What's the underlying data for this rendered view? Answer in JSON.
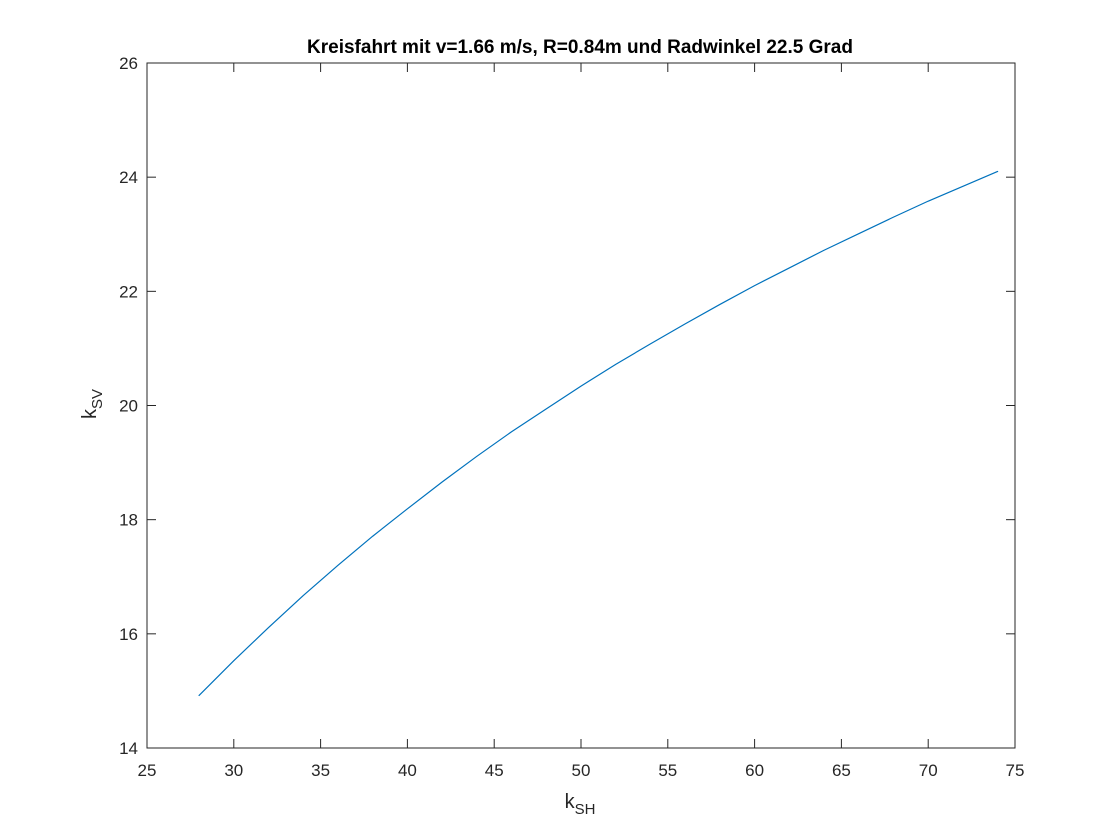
{
  "chart_data": {
    "type": "line",
    "title": "Kreisfahrt mit v=1.66 m/s, R=0.84m und Radwinkel 22.5 Grad",
    "xlabel": {
      "base": "k",
      "sub": "SH"
    },
    "ylabel": {
      "base": "k",
      "sub": "SV"
    },
    "xlim": [
      25,
      75
    ],
    "ylim": [
      14,
      26
    ],
    "xticks": [
      25,
      30,
      35,
      40,
      45,
      50,
      55,
      60,
      65,
      70,
      75
    ],
    "yticks": [
      14,
      16,
      18,
      20,
      22,
      24,
      26
    ],
    "grid": false,
    "series": [
      {
        "color": "#0072bd",
        "x": [
          28,
          30,
          32,
          34,
          36,
          38,
          40,
          42,
          44,
          46,
          48,
          50,
          52,
          54,
          56,
          58,
          60,
          62,
          64,
          66,
          68,
          70,
          72,
          74
        ],
        "y": [
          14.92,
          15.53,
          16.11,
          16.67,
          17.2,
          17.71,
          18.19,
          18.66,
          19.11,
          19.54,
          19.94,
          20.34,
          20.72,
          21.08,
          21.43,
          21.77,
          22.1,
          22.41,
          22.72,
          23.01,
          23.3,
          23.58,
          23.84,
          24.1
        ]
      }
    ]
  }
}
